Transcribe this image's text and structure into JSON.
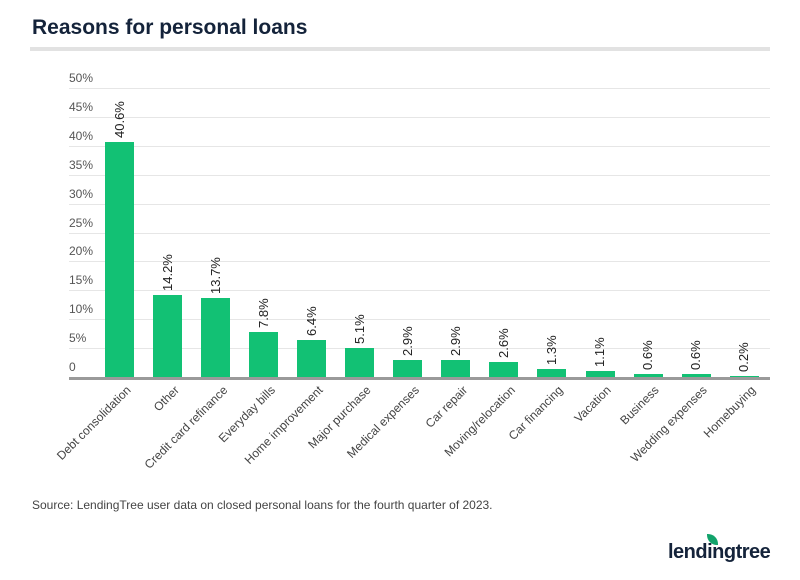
{
  "header": {
    "title": "Reasons for personal loans"
  },
  "footer": {
    "source": "Source: LendingTree user data on closed personal loans for the fourth quarter of 2023.",
    "logo_text": "lendingtree"
  },
  "colors": {
    "bar": "#12c174",
    "title": "#14233a",
    "grid": "#e6e6e6",
    "axis": "#9a9a9a"
  },
  "chart_data": {
    "type": "bar",
    "title": "Reasons for personal loans",
    "xlabel": "",
    "ylabel": "",
    "ylim": [
      0,
      50
    ],
    "yticks": [
      "0",
      "5%",
      "10%",
      "15%",
      "20%",
      "25%",
      "30%",
      "35%",
      "40%",
      "45%",
      "50%"
    ],
    "grid": true,
    "legend": null,
    "categories": [
      "Debt consolidation",
      "Other",
      "Credit card refinance",
      "Everyday bills",
      "Home improvement",
      "Major purchase",
      "Medical expenses",
      "Car repair",
      "Moving/relocation",
      "Car financing",
      "Vacation",
      "Business",
      "Wedding expenses",
      "Homebuying"
    ],
    "values": [
      40.6,
      14.2,
      13.7,
      7.8,
      6.4,
      5.1,
      2.9,
      2.9,
      2.6,
      1.3,
      1.1,
      0.6,
      0.6,
      0.2
    ],
    "value_labels": [
      "40.6%",
      "14.2%",
      "13.7%",
      "7.8%",
      "6.4%",
      "5.1%",
      "2.9%",
      "2.9%",
      "2.6%",
      "1.3%",
      "1.1%",
      "0.6%",
      "0.6%",
      "0.2%"
    ],
    "source": "Source: LendingTree user data on closed personal loans for the fourth quarter of 2023."
  }
}
